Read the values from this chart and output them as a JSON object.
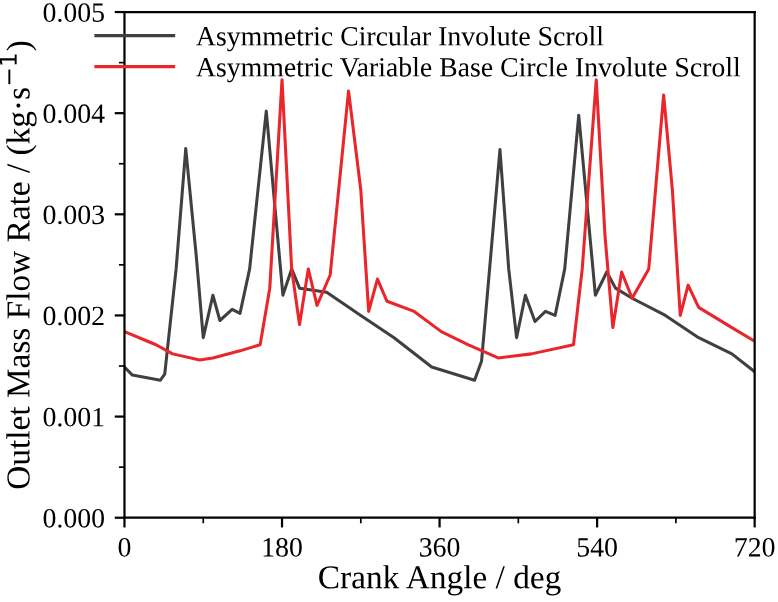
{
  "chart_data": {
    "type": "line",
    "xlabel": "Crank Angle / deg",
    "ylabel": "Outlet Mass Flow Rate / (kg·s$^{−1}$)",
    "xlim": [
      0,
      720
    ],
    "xticks": [
      0,
      180,
      360,
      540,
      720
    ],
    "ylim": [
      0,
      0.005
    ],
    "yticks": [
      {
        "value": 0,
        "label": "0.000"
      },
      {
        "value": 0.001,
        "label": "0.001"
      },
      {
        "value": 0.002,
        "label": "0.002"
      },
      {
        "value": 0.003,
        "label": "0.003"
      },
      {
        "value": 0.004,
        "label": "0.004"
      },
      {
        "value": 0.005,
        "label": "0.005"
      }
    ],
    "legend": "top right",
    "grid": false,
    "marker": "none",
    "line_style": "solid",
    "series": [
      {
        "name": "Asymmetric Circular Involute Scroll",
        "color": "#404040",
        "x": [
          0,
          9,
          41,
          46,
          59,
          70,
          82,
          90,
          101,
          109,
          123,
          132,
          143,
          162,
          181,
          191,
          200,
          231,
          270,
          308,
          351,
          400,
          408,
          429,
          439,
          448,
          458,
          469,
          481,
          492,
          503,
          519,
          538,
          551,
          561,
          580,
          618,
          656,
          694,
          719
        ],
        "values": [
          0.00149,
          0.00141,
          0.00136,
          0.00142,
          0.00246,
          0.00365,
          0.00259,
          0.00178,
          0.0022,
          0.00195,
          0.00206,
          0.00202,
          0.00246,
          0.00402,
          0.0022,
          0.00246,
          0.00227,
          0.00223,
          0.002,
          0.00178,
          0.00149,
          0.00136,
          0.00155,
          0.00364,
          0.00246,
          0.00178,
          0.0022,
          0.00194,
          0.00204,
          0.002,
          0.00246,
          0.00398,
          0.0022,
          0.00243,
          0.00227,
          0.00217,
          0.002,
          0.00178,
          0.00162,
          0.00145
        ]
      },
      {
        "name": "Asymmetric Variable Base Circle Involute Scroll",
        "color": "#e8262b",
        "x": [
          0,
          25,
          36,
          55,
          86,
          101,
          132,
          155,
          166,
          180,
          191,
          200,
          210,
          220,
          235,
          247,
          256,
          270,
          279,
          289,
          300,
          331,
          362,
          393,
          427,
          465,
          513,
          523,
          539,
          549,
          558,
          568,
          580,
          599,
          616,
          626,
          635,
          644,
          656,
          694,
          719
        ],
        "values": [
          0.00184,
          0.00175,
          0.00171,
          0.00162,
          0.00156,
          0.00158,
          0.00165,
          0.00171,
          0.00227,
          0.00433,
          0.00246,
          0.00191,
          0.00246,
          0.0021,
          0.0024,
          0.00344,
          0.00422,
          0.00324,
          0.00204,
          0.00236,
          0.00214,
          0.00204,
          0.00184,
          0.00171,
          0.00158,
          0.00162,
          0.00171,
          0.00246,
          0.00433,
          0.00279,
          0.00188,
          0.00243,
          0.00217,
          0.00246,
          0.00418,
          0.00324,
          0.002,
          0.0023,
          0.00208,
          0.00188,
          0.00175
        ]
      }
    ]
  }
}
